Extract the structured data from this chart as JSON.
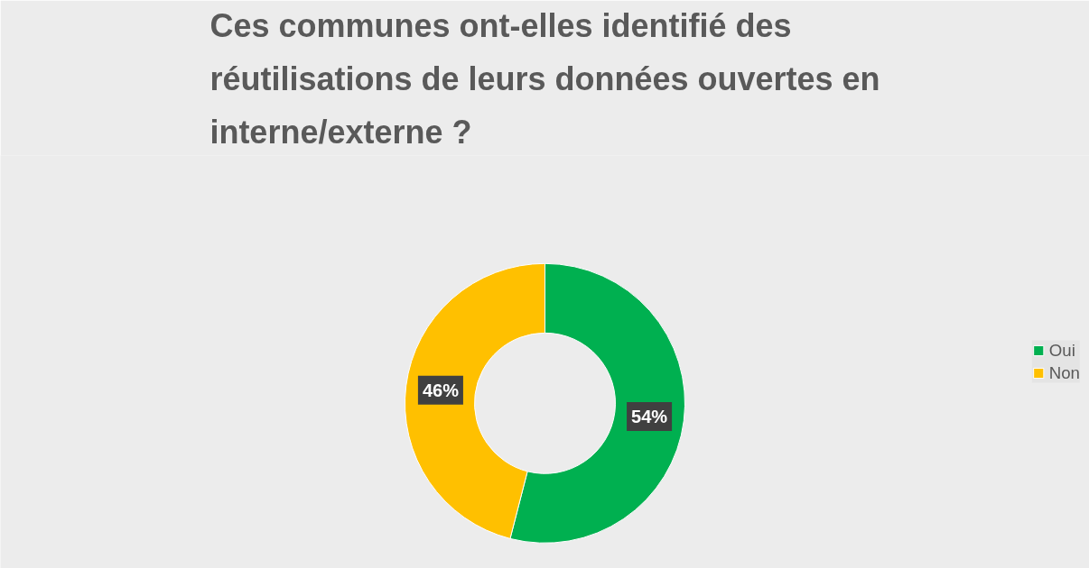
{
  "chart_data": {
    "type": "donut",
    "title": "Ces communes ont-elles identifié des réutilisations de leurs données ouvertes en interne/externe ?",
    "categories": [
      "Oui",
      "Non"
    ],
    "values": [
      54,
      46
    ],
    "colors": [
      "#00b050",
      "#ffc000"
    ],
    "value_labels": [
      "54%",
      "46%"
    ],
    "legend": "right"
  }
}
